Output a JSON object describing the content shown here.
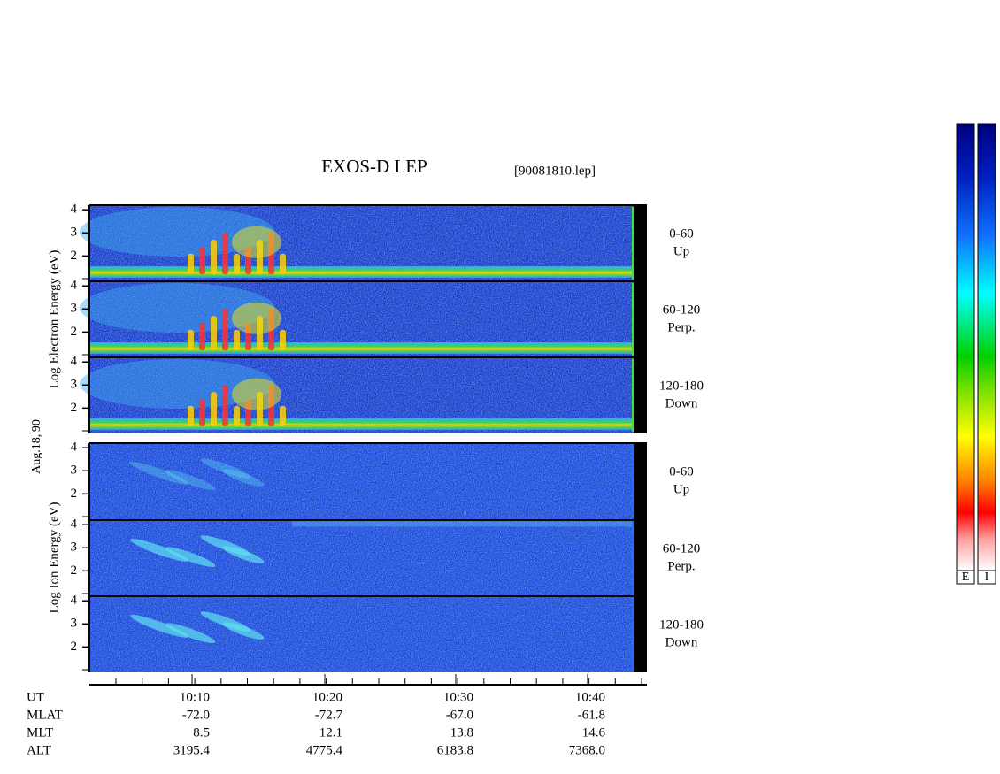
{
  "chart_data": {
    "type": "spectrogram",
    "title": "EXOS-D LEP",
    "file_label": "[90081810.lep]",
    "date_label": "Aug.18,'90",
    "ylim": [
      0.9,
      4.2
    ],
    "yticks": [
      2,
      3,
      4
    ],
    "groups": [
      {
        "species": "electron",
        "axis_label": "Log Electron Energy (eV)",
        "panels": [
          {
            "label": [
              "0-60",
              "Up"
            ]
          },
          {
            "label": [
              "60-120",
              "Perp."
            ]
          },
          {
            "label": [
              "120-180",
              "Down"
            ]
          }
        ]
      },
      {
        "species": "ion",
        "axis_label": "Log Ion Energy (eV)",
        "panels": [
          {
            "label": [
              "0-60",
              "Up"
            ]
          },
          {
            "label": [
              "60-120",
              "Perp."
            ]
          },
          {
            "label": [
              "120-180",
              "Down"
            ]
          }
        ]
      }
    ],
    "ephemeris": {
      "row_labels": [
        "UT",
        "MLAT",
        "MLT",
        "ALT"
      ],
      "columns": [
        [
          "10:10",
          "-72.0",
          "8.5",
          "3195.4"
        ],
        [
          "10:20",
          "-72.7",
          "12.1",
          "4775.4"
        ],
        [
          "10:30",
          "-67.0",
          "13.8",
          "6183.8"
        ],
        [
          "10:40",
          "-61.8",
          "14.6",
          "7368.0"
        ]
      ]
    },
    "colorbar_labels": [
      "E",
      "I"
    ]
  }
}
